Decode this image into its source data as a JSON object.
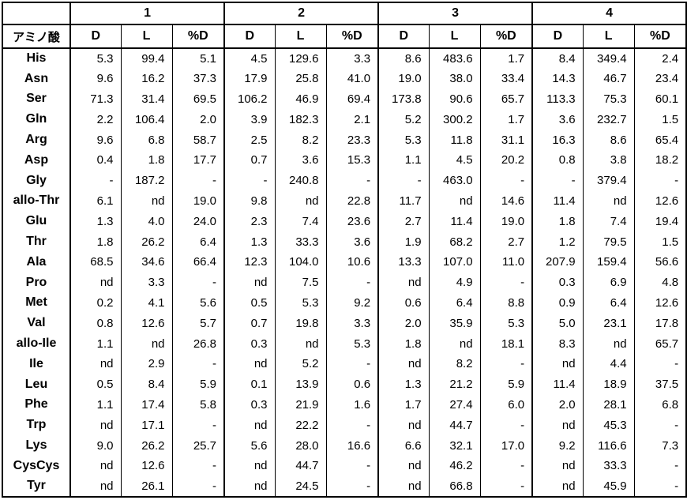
{
  "chart_data": {
    "type": "table",
    "title": "",
    "corner_label": "アミノ酸",
    "group_labels": [
      "1",
      "2",
      "3",
      "4"
    ],
    "sub_columns": [
      "D",
      "L",
      "%D"
    ],
    "layout": "22 amino-acid rows; 4 sample groups each with D, L and %D sub-columns; no horizontal rules between data rows",
    "rows": [
      {
        "name": "His",
        "values": [
          "5.3",
          "99.4",
          "5.1",
          "4.5",
          "129.6",
          "3.3",
          "8.6",
          "483.6",
          "1.7",
          "8.4",
          "349.4",
          "2.4"
        ]
      },
      {
        "name": "Asn",
        "values": [
          "9.6",
          "16.2",
          "37.3",
          "17.9",
          "25.8",
          "41.0",
          "19.0",
          "38.0",
          "33.4",
          "14.3",
          "46.7",
          "23.4"
        ]
      },
      {
        "name": "Ser",
        "values": [
          "71.3",
          "31.4",
          "69.5",
          "106.2",
          "46.9",
          "69.4",
          "173.8",
          "90.6",
          "65.7",
          "113.3",
          "75.3",
          "60.1"
        ]
      },
      {
        "name": "Gln",
        "values": [
          "2.2",
          "106.4",
          "2.0",
          "3.9",
          "182.3",
          "2.1",
          "5.2",
          "300.2",
          "1.7",
          "3.6",
          "232.7",
          "1.5"
        ]
      },
      {
        "name": "Arg",
        "values": [
          "9.6",
          "6.8",
          "58.7",
          "2.5",
          "8.2",
          "23.3",
          "5.3",
          "11.8",
          "31.1",
          "16.3",
          "8.6",
          "65.4"
        ]
      },
      {
        "name": "Asp",
        "values": [
          "0.4",
          "1.8",
          "17.7",
          "0.7",
          "3.6",
          "15.3",
          "1.1",
          "4.5",
          "20.2",
          "0.8",
          "3.8",
          "18.2"
        ]
      },
      {
        "name": "Gly",
        "values": [
          "-",
          "187.2",
          "-",
          "-",
          "240.8",
          "-",
          "-",
          "463.0",
          "-",
          "-",
          "379.4",
          "-"
        ]
      },
      {
        "name": "allo-Thr",
        "values": [
          "6.1",
          "nd",
          "19.0",
          "9.8",
          "nd",
          "22.8",
          "11.7",
          "nd",
          "14.6",
          "11.4",
          "nd",
          "12.6"
        ]
      },
      {
        "name": "Glu",
        "values": [
          "1.3",
          "4.0",
          "24.0",
          "2.3",
          "7.4",
          "23.6",
          "2.7",
          "11.4",
          "19.0",
          "1.8",
          "7.4",
          "19.4"
        ]
      },
      {
        "name": "Thr",
        "values": [
          "1.8",
          "26.2",
          "6.4",
          "1.3",
          "33.3",
          "3.6",
          "1.9",
          "68.2",
          "2.7",
          "1.2",
          "79.5",
          "1.5"
        ]
      },
      {
        "name": "Ala",
        "values": [
          "68.5",
          "34.6",
          "66.4",
          "12.3",
          "104.0",
          "10.6",
          "13.3",
          "107.0",
          "11.0",
          "207.9",
          "159.4",
          "56.6"
        ]
      },
      {
        "name": "Pro",
        "values": [
          "nd",
          "3.3",
          "-",
          "nd",
          "7.5",
          "-",
          "nd",
          "4.9",
          "-",
          "0.3",
          "6.9",
          "4.8"
        ]
      },
      {
        "name": "Met",
        "values": [
          "0.2",
          "4.1",
          "5.6",
          "0.5",
          "5.3",
          "9.2",
          "0.6",
          "6.4",
          "8.8",
          "0.9",
          "6.4",
          "12.6"
        ]
      },
      {
        "name": "Val",
        "values": [
          "0.8",
          "12.6",
          "5.7",
          "0.7",
          "19.8",
          "3.3",
          "2.0",
          "35.9",
          "5.3",
          "5.0",
          "23.1",
          "17.8"
        ]
      },
      {
        "name": "allo-Ile",
        "values": [
          "1.1",
          "nd",
          "26.8",
          "0.3",
          "nd",
          "5.3",
          "1.8",
          "nd",
          "18.1",
          "8.3",
          "nd",
          "65.7"
        ]
      },
      {
        "name": "Ile",
        "values": [
          "nd",
          "2.9",
          "-",
          "nd",
          "5.2",
          "-",
          "nd",
          "8.2",
          "-",
          "nd",
          "4.4",
          "-"
        ]
      },
      {
        "name": "Leu",
        "values": [
          "0.5",
          "8.4",
          "5.9",
          "0.1",
          "13.9",
          "0.6",
          "1.3",
          "21.2",
          "5.9",
          "11.4",
          "18.9",
          "37.5"
        ]
      },
      {
        "name": "Phe",
        "values": [
          "1.1",
          "17.4",
          "5.8",
          "0.3",
          "21.9",
          "1.6",
          "1.7",
          "27.4",
          "6.0",
          "2.0",
          "28.1",
          "6.8"
        ]
      },
      {
        "name": "Trp",
        "values": [
          "nd",
          "17.1",
          "-",
          "nd",
          "22.2",
          "-",
          "nd",
          "44.7",
          "-",
          "nd",
          "45.3",
          "-"
        ]
      },
      {
        "name": "Lys",
        "values": [
          "9.0",
          "26.2",
          "25.7",
          "5.6",
          "28.0",
          "16.6",
          "6.6",
          "32.1",
          "17.0",
          "9.2",
          "116.6",
          "7.3"
        ]
      },
      {
        "name": "CysCys",
        "values": [
          "nd",
          "12.6",
          "-",
          "nd",
          "44.7",
          "-",
          "nd",
          "46.2",
          "-",
          "nd",
          "33.3",
          "-"
        ]
      },
      {
        "name": "Tyr",
        "values": [
          "nd",
          "26.1",
          "-",
          "nd",
          "24.5",
          "-",
          "nd",
          "66.8",
          "-",
          "nd",
          "45.9",
          "-"
        ]
      }
    ]
  }
}
